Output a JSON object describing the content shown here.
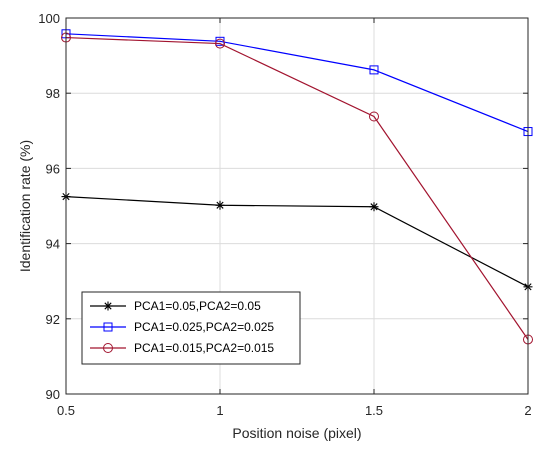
{
  "chart_data": {
    "type": "line",
    "title": "",
    "xlabel": "Position noise (pixel)",
    "ylabel": "Identification rate (%)",
    "x": [
      0.5,
      1,
      1.5,
      2
    ],
    "xlim": [
      0.5,
      2
    ],
    "ylim": [
      90,
      100
    ],
    "xticks": [
      "0.5",
      "1",
      "1.5",
      "2"
    ],
    "yticks": [
      "90",
      "92",
      "94",
      "96",
      "98",
      "100"
    ],
    "grid": true,
    "legend_position": "bottom-left",
    "series": [
      {
        "name": "PCA1=0.05,PCA2=0.05",
        "values": [
          95.25,
          95.02,
          94.98,
          92.85
        ],
        "color": "#000000",
        "marker": "asterisk"
      },
      {
        "name": "PCA1=0.025,PCA2=0.025",
        "values": [
          99.58,
          99.38,
          98.62,
          96.98
        ],
        "color": "#0000ff",
        "marker": "square"
      },
      {
        "name": "PCA1=0.015,PCA2=0.015",
        "values": [
          99.48,
          99.32,
          97.38,
          91.45
        ],
        "color": "#a2142f",
        "marker": "circle"
      }
    ]
  }
}
